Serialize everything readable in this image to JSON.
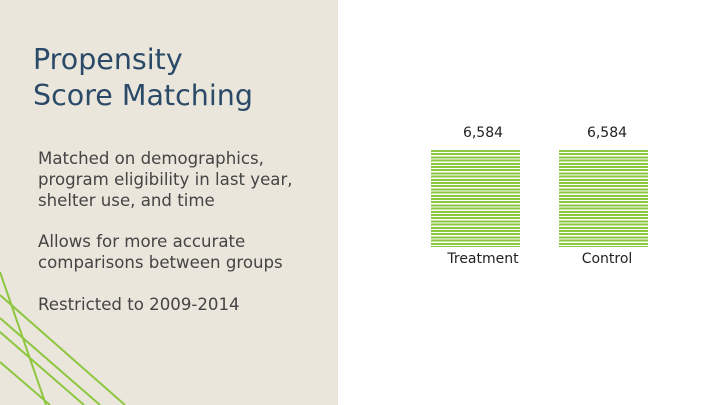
{
  "slide": {
    "title_lines": [
      "Propensity",
      "Score Matching"
    ],
    "bullets": [
      {
        "lines": [
          "Matched on demographics,",
          "program eligibility in last year,",
          "shelter use, and time"
        ]
      },
      {
        "lines": [
          "Allows for more accurate",
          "comparisons between groups"
        ]
      },
      {
        "lines": [
          "Restricted to 2009-2014"
        ]
      }
    ]
  },
  "groups": [
    {
      "label": "Treatment",
      "count": "6,584"
    },
    {
      "label": "Control",
      "count": "6,584"
    }
  ],
  "colors": {
    "left_panel_bg": "#ebe6dc",
    "accent_green": "#8dc63f",
    "title": "#2a4a68",
    "body_text": "#444444"
  }
}
